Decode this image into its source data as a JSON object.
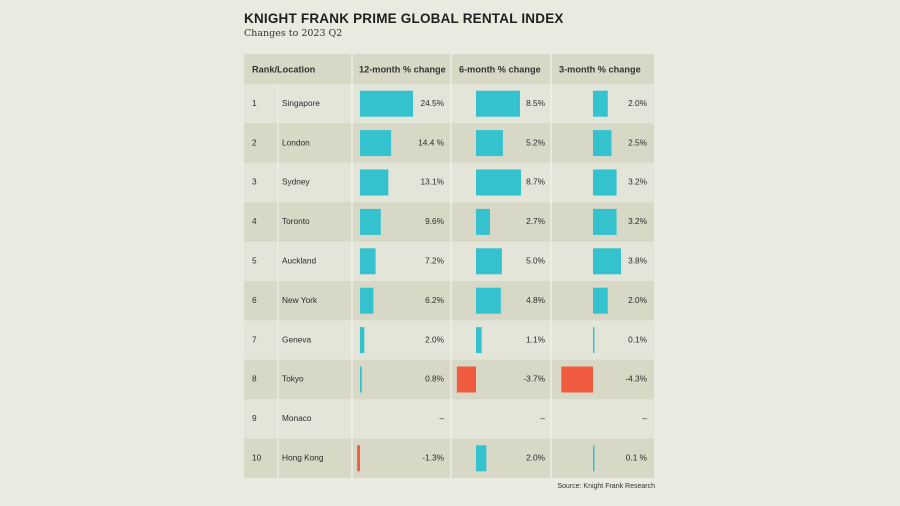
{
  "title": "KNIGHT FRANK PRIME GLOBAL RENTAL INDEX",
  "subtitle": "Changes to 2023 Q2",
  "source": "Source: Knight Frank Research",
  "colors": {
    "background": "#e9ebe0",
    "panel": "#e3e5d8",
    "header": "#d7d8c6",
    "positive": "#35c2cf",
    "negative": "#f05a3e"
  },
  "chart_data": {
    "type": "table",
    "columns": [
      "Rank/Location",
      "12-month % change",
      "6-month % change",
      "3-month % change"
    ],
    "rows": [
      {
        "rank": "1",
        "location": "Singapore",
        "m12": 24.5,
        "m12_label": "24.5%",
        "m6": 8.5,
        "m6_label": "8.5%",
        "m3": 2.0,
        "m3_label": "2.0%"
      },
      {
        "rank": "2",
        "location": "London",
        "m12": 14.4,
        "m12_label": "14.4 %",
        "m6": 5.2,
        "m6_label": "5.2%",
        "m3": 2.5,
        "m3_label": "2.5%"
      },
      {
        "rank": "3",
        "location": "Sydney",
        "m12": 13.1,
        "m12_label": "13.1%",
        "m6": 8.7,
        "m6_label": "8.7%",
        "m3": 3.2,
        "m3_label": "3.2%"
      },
      {
        "rank": "4",
        "location": "Toronto",
        "m12": 9.6,
        "m12_label": "9.6%",
        "m6": 2.7,
        "m6_label": "2.7%",
        "m3": 3.2,
        "m3_label": "3.2%"
      },
      {
        "rank": "5",
        "location": "Auckland",
        "m12": 7.2,
        "m12_label": "7.2%",
        "m6": 5.0,
        "m6_label": "5.0%",
        "m3": 3.8,
        "m3_label": "3.8%"
      },
      {
        "rank": "6",
        "location": "New York",
        "m12": 6.2,
        "m12_label": "6.2%",
        "m6": 4.8,
        "m6_label": "4.8%",
        "m3": 2.0,
        "m3_label": "2.0%"
      },
      {
        "rank": "7",
        "location": "Geneva",
        "m12": 2.0,
        "m12_label": "2.0%",
        "m6": 1.1,
        "m6_label": "1.1%",
        "m3": 0.1,
        "m3_label": "0.1%"
      },
      {
        "rank": "8",
        "location": "Tokyo",
        "m12": 0.8,
        "m12_label": "0.8%",
        "m6": -3.7,
        "m6_label": "-3.7%",
        "m3": -4.3,
        "m3_label": "-4.3%"
      },
      {
        "rank": "9",
        "location": "Monaco",
        "m12": null,
        "m12_label": "–",
        "m6": null,
        "m6_label": "–",
        "m3": null,
        "m3_label": "–"
      },
      {
        "rank": "10",
        "location": "Hong Kong",
        "m12": -1.3,
        "m12_label": "-1.3%",
        "m6": 2.0,
        "m6_label": "2.0%",
        "m3": 0.1,
        "m3_label": "0.1 %"
      }
    ]
  }
}
